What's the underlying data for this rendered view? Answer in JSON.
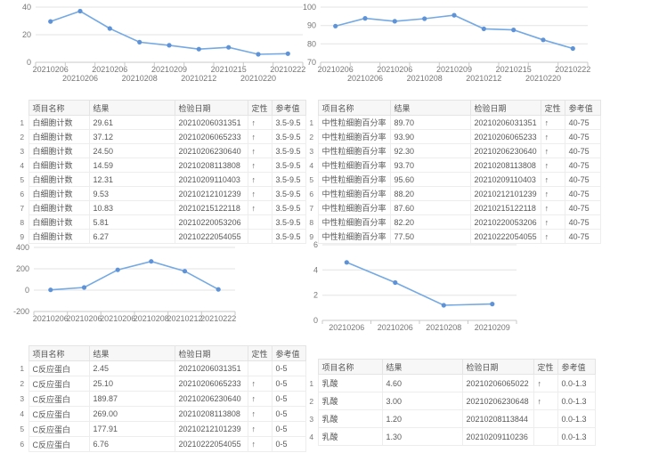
{
  "colors": {
    "line": "#74a9e4",
    "point": "#5f93d8",
    "grid": "#e3e3e3",
    "axis": "#c9c9c9",
    "axis_text": "#767676",
    "table_border": "#ededed",
    "header_bg": "#f7f7f7",
    "text": "#595959"
  },
  "chart_data": [
    {
      "type": "line",
      "x": [
        "20210206",
        "20210206",
        "20210206",
        "20210208",
        "20210209",
        "20210212",
        "20210215",
        "20210220",
        "20210222"
      ],
      "values": [
        29.61,
        37.12,
        24.5,
        14.59,
        12.31,
        9.53,
        10.83,
        5.81,
        6.27
      ],
      "ylim": [
        0,
        40
      ],
      "yticks": [
        0,
        20,
        40
      ],
      "stagger": true,
      "grid": true,
      "legend": "none"
    },
    {
      "type": "line",
      "x": [
        "20210206",
        "20210206",
        "20210206",
        "20210208",
        "20210209",
        "20210212",
        "20210215",
        "20210220",
        "20210222"
      ],
      "values": [
        89.7,
        93.9,
        92.3,
        93.7,
        95.6,
        88.2,
        87.6,
        82.2,
        77.5
      ],
      "ylim": [
        70,
        100
      ],
      "yticks": [
        70,
        80,
        90,
        100
      ],
      "stagger": true,
      "grid": true,
      "legend": "none"
    },
    {
      "type": "line",
      "x": [
        "20210206",
        "20210206",
        "20210206",
        "20210208",
        "20210212",
        "20210222"
      ],
      "values": [
        2.45,
        25.1,
        189.87,
        269.0,
        177.91,
        6.76
      ],
      "ylim": [
        -200,
        400
      ],
      "yticks": [
        -200,
        0,
        200,
        400
      ],
      "stagger": false,
      "grid": true,
      "legend": "none"
    },
    {
      "type": "line",
      "x": [
        "20210206",
        "20210206",
        "20210208",
        "20210209"
      ],
      "values": [
        4.6,
        3.0,
        1.2,
        1.3
      ],
      "ylim": [
        0,
        6
      ],
      "yticks": [
        0,
        2,
        4,
        6
      ],
      "stagger": false,
      "grid": true,
      "legend": "none"
    }
  ],
  "tables": [
    {
      "headers": [
        "项目名称",
        "结果",
        "检验日期",
        "定性",
        "参考值"
      ],
      "rows": [
        [
          "白细胞计数",
          "29.61",
          "20210206031351",
          "↑",
          "3.5-9.5"
        ],
        [
          "白细胞计数",
          "37.12",
          "20210206065233",
          "↑",
          "3.5-9.5"
        ],
        [
          "白细胞计数",
          "24.50",
          "20210206230640",
          "↑",
          "3.5-9.5"
        ],
        [
          "白细胞计数",
          "14.59",
          "20210208113808",
          "↑",
          "3.5-9.5"
        ],
        [
          "白细胞计数",
          "12.31",
          "20210209110403",
          "↑",
          "3.5-9.5"
        ],
        [
          "白细胞计数",
          "9.53",
          "20210212101239",
          "↑",
          "3.5-9.5"
        ],
        [
          "白细胞计数",
          "10.83",
          "20210215122118",
          "↑",
          "3.5-9.5"
        ],
        [
          "白细胞计数",
          "5.81",
          "20210220053206",
          "",
          "3.5-9.5"
        ],
        [
          "白细胞计数",
          "6.27",
          "20210222054055",
          "",
          "3.5-9.5"
        ]
      ]
    },
    {
      "headers": [
        "项目名称",
        "结果",
        "检验日期",
        "定性",
        "参考值"
      ],
      "rows": [
        [
          "中性粒细胞百分率",
          "89.70",
          "20210206031351",
          "↑",
          "40-75"
        ],
        [
          "中性粒细胞百分率",
          "93.90",
          "20210206065233",
          "↑",
          "40-75"
        ],
        [
          "中性粒细胞百分率",
          "92.30",
          "20210206230640",
          "↑",
          "40-75"
        ],
        [
          "中性粒细胞百分率",
          "93.70",
          "20210208113808",
          "↑",
          "40-75"
        ],
        [
          "中性粒细胞百分率",
          "95.60",
          "20210209110403",
          "↑",
          "40-75"
        ],
        [
          "中性粒细胞百分率",
          "88.20",
          "20210212101239",
          "↑",
          "40-75"
        ],
        [
          "中性粒细胞百分率",
          "87.60",
          "20210215122118",
          "↑",
          "40-75"
        ],
        [
          "中性粒细胞百分率",
          "82.20",
          "20210220053206",
          "↑",
          "40-75"
        ],
        [
          "中性粒细胞百分率",
          "77.50",
          "20210222054055",
          "↑",
          "40-75"
        ]
      ]
    },
    {
      "headers": [
        "项目名称",
        "结果",
        "检验日期",
        "定性",
        "参考值"
      ],
      "rows": [
        [
          "C反应蛋白",
          "2.45",
          "20210206031351",
          "",
          "0-5"
        ],
        [
          "C反应蛋白",
          "25.10",
          "20210206065233",
          "↑",
          "0-5"
        ],
        [
          "C反应蛋白",
          "189.87",
          "20210206230640",
          "↑",
          "0-5"
        ],
        [
          "C反应蛋白",
          "269.00",
          "20210208113808",
          "↑",
          "0-5"
        ],
        [
          "C反应蛋白",
          "177.91",
          "20210212101239",
          "↑",
          "0-5"
        ],
        [
          "C反应蛋白",
          "6.76",
          "20210222054055",
          "↑",
          "0-5"
        ]
      ]
    },
    {
      "headers": [
        "项目名称",
        "结果",
        "检验日期",
        "定性",
        "参考值"
      ],
      "rows": [
        [
          "乳酸",
          "4.60",
          "20210206065022",
          "↑",
          "0.0-1.3"
        ],
        [
          "乳酸",
          "3.00",
          "20210206230648",
          "↑",
          "0.0-1.3"
        ],
        [
          "乳酸",
          "1.20",
          "20210208113844",
          "",
          "0.0-1.3"
        ],
        [
          "乳酸",
          "1.30",
          "20210209110236",
          "",
          "0.0-1.3"
        ]
      ]
    }
  ],
  "column_keys": [
    "item-name",
    "result",
    "test-date",
    "qualitative",
    "reference-value"
  ]
}
